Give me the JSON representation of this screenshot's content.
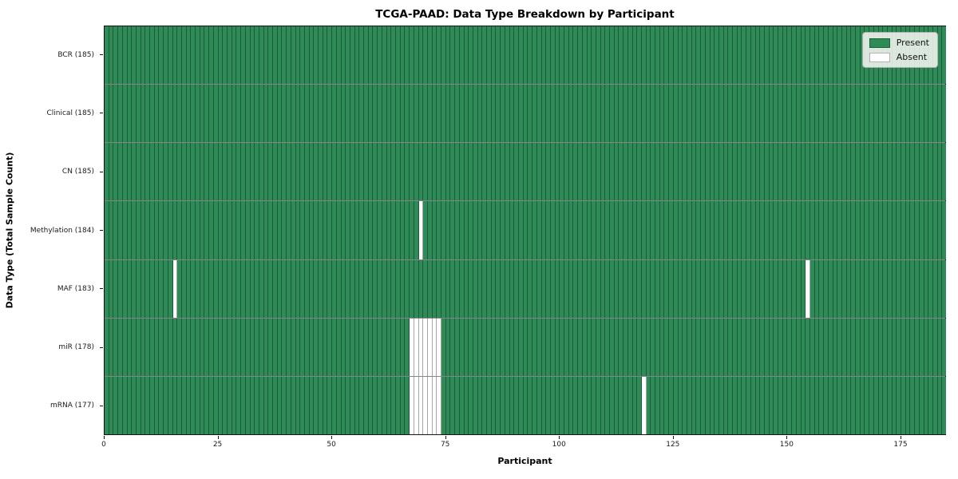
{
  "chart_data": {
    "type": "heatmap",
    "title": "TCGA-PAAD: Data Type Breakdown by Participant",
    "xlabel": "Participant",
    "ylabel": "Data Type (Total Sample Count)",
    "n_participants": 185,
    "x_ticks": [
      0,
      25,
      50,
      75,
      100,
      125,
      150,
      175
    ],
    "grid": "cell-borders",
    "legend_position": "upper right",
    "legend": [
      {
        "label": "Present",
        "state": "present"
      },
      {
        "label": "Absent",
        "state": "absent"
      }
    ],
    "colors": {
      "present": "#2e8b57",
      "absent": "#ffffff",
      "cell_edge": "rgba(0,0,0,0.35)",
      "row_separator": "rgba(0,0,0,0.48)"
    },
    "rows": [
      {
        "label": "BCR (185)",
        "data_type": "BCR",
        "present_count": 185,
        "absent_participants": []
      },
      {
        "label": "Clinical (185)",
        "data_type": "Clinical",
        "present_count": 185,
        "absent_participants": []
      },
      {
        "label": "CN (185)",
        "data_type": "CN",
        "present_count": 185,
        "absent_participants": []
      },
      {
        "label": "Methylation (184)",
        "data_type": "Methylation",
        "present_count": 184,
        "absent_participants": [
          69
        ]
      },
      {
        "label": "MAF (183)",
        "data_type": "MAF",
        "present_count": 183,
        "absent_participants": [
          15,
          154
        ]
      },
      {
        "label": "miR (178)",
        "data_type": "miR",
        "present_count": 178,
        "absent_participants": [
          67,
          68,
          69,
          70,
          71,
          72,
          73
        ]
      },
      {
        "label": "mRNA (177)",
        "data_type": "mRNA",
        "present_count": 177,
        "absent_participants": [
          67,
          68,
          69,
          70,
          71,
          72,
          73,
          118
        ]
      }
    ]
  }
}
